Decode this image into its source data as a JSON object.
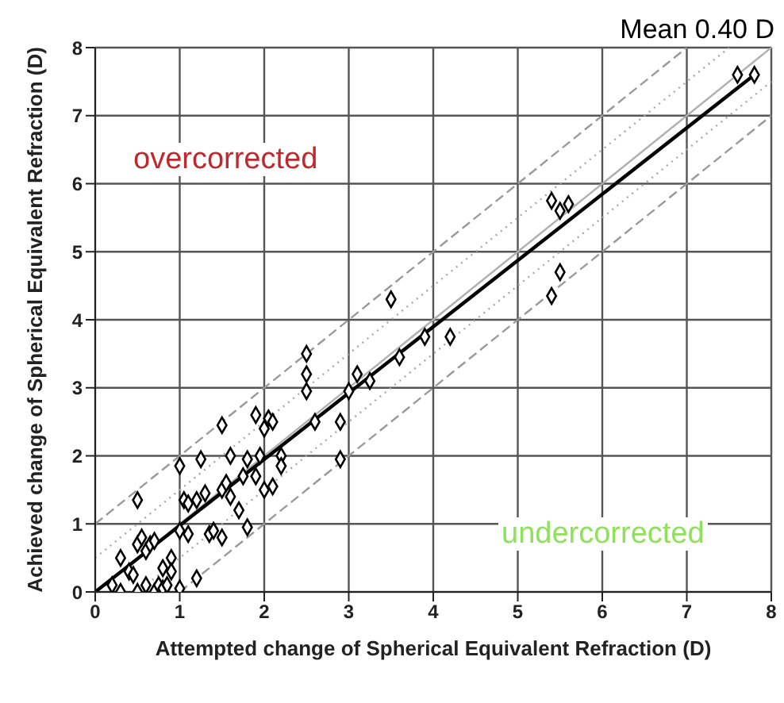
{
  "chart_data": {
    "type": "scatter",
    "xlabel": "Attempted change of Spherical Equivalent Refraction (D)",
    "ylabel": "Achieved change of Spherical Equivalent Refraction (D)",
    "annotations": [
      "Mean 0.40 D",
      "overcorrected",
      "undercorrected"
    ],
    "xlim": [
      0,
      8
    ],
    "ylim": [
      0,
      8
    ],
    "xticks": [
      0,
      1,
      2,
      3,
      4,
      5,
      6,
      7,
      8
    ],
    "yticks": [
      0,
      1,
      2,
      3,
      4,
      5,
      6,
      7,
      8
    ],
    "grid": true,
    "legend": false,
    "series": [
      {
        "type": "line",
        "color": "#9a9a9a",
        "line_style": "dashed",
        "marker": "none",
        "x": [
          0,
          7
        ],
        "values": [
          1,
          8
        ]
      },
      {
        "type": "line",
        "color": "#9a9a9a",
        "line_style": "dashed",
        "marker": "none",
        "x": [
          1,
          8
        ],
        "values": [
          0,
          7
        ]
      },
      {
        "type": "line",
        "color": "#a8a8a8",
        "line_style": "dotted",
        "marker": "none",
        "x": [
          0,
          7.5
        ],
        "values": [
          0.5,
          8
        ]
      },
      {
        "type": "line",
        "color": "#a8a8a8",
        "line_style": "dotted",
        "marker": "none",
        "x": [
          0.5,
          8
        ],
        "values": [
          0,
          7.5
        ]
      },
      {
        "type": "line",
        "color": "#b0b0b0",
        "line_style": "solid",
        "marker": "none",
        "x": [
          0,
          8
        ],
        "values": [
          0,
          8
        ]
      },
      {
        "type": "line",
        "color": "#000000",
        "line_style": "solid",
        "marker": "none",
        "x": [
          0,
          7.8
        ],
        "values": [
          0,
          7.6
        ]
      },
      {
        "color": "#000000",
        "marker": "diamond",
        "x": [
          0.3,
          0.2,
          0.3,
          0.5,
          0.6,
          0.7,
          0.75,
          0.8,
          0.85,
          1.0,
          0.4,
          0.45,
          0.5,
          0.5,
          0.55,
          0.6,
          0.65,
          0.7,
          0.8,
          0.9,
          0.9,
          1.0,
          1.1,
          1.2,
          1.0,
          1.05,
          1.1,
          1.2,
          1.25,
          1.3,
          1.35,
          1.4,
          1.5,
          1.5,
          1.55,
          1.6,
          1.6,
          1.7,
          1.75,
          1.8,
          1.8,
          1.9,
          1.9,
          1.95,
          2.0,
          2.05,
          2.1,
          2.2,
          1.5,
          2.0,
          2.2,
          2.5,
          2.5,
          2.5,
          2.6,
          2.9,
          3.0,
          3.1,
          3.25,
          3.6,
          3.5,
          3.9,
          4.2,
          2.1,
          2.9,
          5.4,
          5.5,
          5.6,
          5.5,
          5.4,
          7.6,
          7.8
        ],
        "values": [
          0.5,
          0.1,
          0,
          0,
          0.1,
          0,
          0.1,
          0.05,
          0.1,
          0.05,
          0.3,
          0.25,
          0.7,
          1.35,
          0.8,
          0.6,
          0.7,
          0.75,
          0.35,
          0.5,
          0.3,
          0.9,
          0.85,
          0.2,
          1.85,
          1.35,
          1.3,
          1.35,
          1.95,
          1.45,
          0.85,
          0.9,
          0.8,
          1.5,
          1.6,
          1.4,
          2.0,
          1.2,
          1.7,
          0.95,
          1.95,
          1.7,
          2.6,
          2.0,
          1.5,
          2.55,
          1.55,
          2.0,
          2.45,
          2.4,
          1.85,
          3.2,
          2.95,
          3.5,
          2.5,
          2.5,
          2.95,
          3.2,
          3.1,
          3.45,
          4.3,
          3.75,
          3.75,
          2.5,
          1.95,
          5.75,
          5.6,
          5.7,
          4.7,
          4.35,
          7.6,
          7.6
        ]
      }
    ]
  }
}
